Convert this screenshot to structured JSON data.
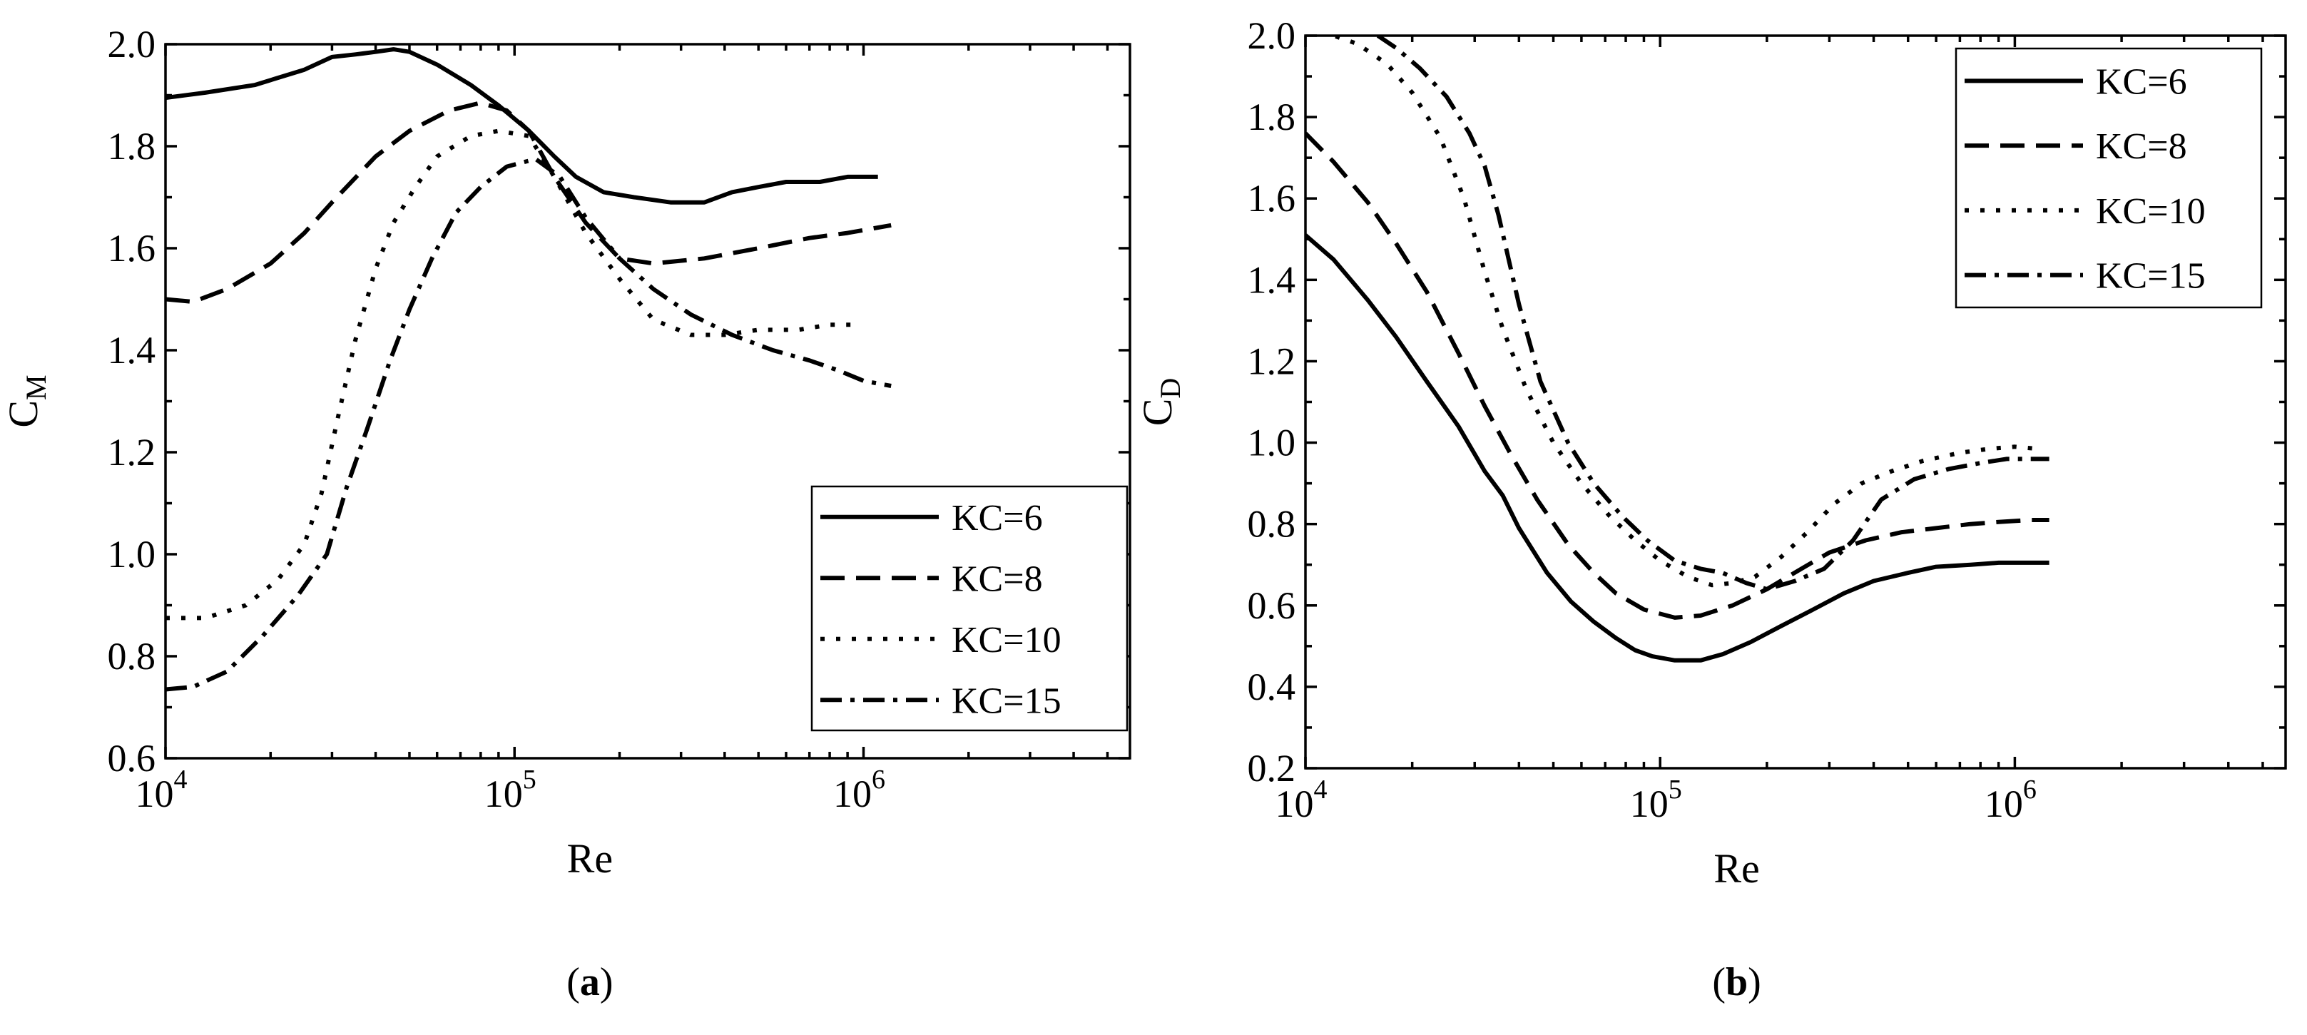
{
  "chart_data": [
    {
      "type": "line",
      "panel_label": "a",
      "title": "",
      "xlabel": "Re",
      "ylabel": "C",
      "ylabel_sub": "M",
      "xscale": "log",
      "xlim": [
        10000,
        5800000
      ],
      "ylim": [
        0.6,
        2.0
      ],
      "x_ticks": [
        {
          "base": "10",
          "exp": "4"
        },
        {
          "base": "10",
          "exp": "5"
        },
        {
          "base": "10",
          "exp": "6"
        }
      ],
      "y_tick_labels": [
        "0.6",
        "0.8",
        "1.0",
        "1.2",
        "1.4",
        "1.6",
        "1.8",
        "2.0"
      ],
      "legend_position": "bottom-right",
      "series": [
        {
          "name": "KC=6",
          "dash": "solid",
          "x": [
            10000,
            13000,
            18000,
            25000,
            30000,
            35000,
            40000,
            45000,
            50000,
            60000,
            75000,
            90000,
            110000,
            130000,
            150000,
            180000,
            220000,
            280000,
            350000,
            420000,
            500000,
            600000,
            750000,
            900000,
            1100000
          ],
          "y": [
            1.895,
            1.905,
            1.92,
            1.95,
            1.975,
            1.98,
            1.985,
            1.99,
            1.985,
            1.96,
            1.92,
            1.88,
            1.83,
            1.78,
            1.74,
            1.71,
            1.7,
            1.69,
            1.69,
            1.71,
            1.72,
            1.73,
            1.73,
            1.74,
            1.74
          ]
        },
        {
          "name": "KC=8",
          "dash": "dash",
          "x": [
            10000,
            12000,
            15000,
            20000,
            25000,
            30000,
            40000,
            50000,
            65000,
            80000,
            95000,
            110000,
            130000,
            160000,
            200000,
            250000,
            350000,
            500000,
            700000,
            900000,
            1200000
          ],
          "y": [
            1.5,
            1.495,
            1.52,
            1.57,
            1.63,
            1.69,
            1.78,
            1.83,
            1.87,
            1.885,
            1.87,
            1.83,
            1.74,
            1.65,
            1.58,
            1.57,
            1.58,
            1.6,
            1.62,
            1.63,
            1.645
          ]
        },
        {
          "name": "KC=10",
          "dash": "dot",
          "x": [
            10000,
            13000,
            17000,
            21000,
            25000,
            28000,
            31000,
            35000,
            40000,
            45000,
            52000,
            60000,
            75000,
            90000,
            110000,
            130000,
            160000,
            200000,
            250000,
            320000,
            400000,
            500000,
            650000,
            800000,
            950000
          ],
          "y": [
            0.875,
            0.875,
            0.9,
            0.95,
            1.02,
            1.12,
            1.26,
            1.42,
            1.56,
            1.65,
            1.72,
            1.78,
            1.82,
            1.83,
            1.82,
            1.74,
            1.63,
            1.54,
            1.46,
            1.43,
            1.43,
            1.44,
            1.44,
            1.45,
            1.45
          ]
        },
        {
          "name": "KC=15",
          "dash": "dashdot",
          "x": [
            10000,
            12000,
            15000,
            19000,
            24000,
            29000,
            33000,
            38000,
            44000,
            50000,
            58000,
            68000,
            80000,
            95000,
            115000,
            135000,
            160000,
            200000,
            250000,
            320000,
            420000,
            550000,
            700000,
            850000,
            1000000,
            1200000
          ],
          "y": [
            0.735,
            0.74,
            0.77,
            0.84,
            0.92,
            1.0,
            1.13,
            1.25,
            1.38,
            1.48,
            1.58,
            1.67,
            1.72,
            1.76,
            1.775,
            1.74,
            1.66,
            1.58,
            1.52,
            1.47,
            1.43,
            1.4,
            1.38,
            1.36,
            1.34,
            1.33
          ]
        }
      ]
    },
    {
      "type": "line",
      "panel_label": "b",
      "title": "",
      "xlabel": "Re",
      "ylabel": "C",
      "ylabel_sub": "D",
      "xscale": "log",
      "xlim": [
        10000,
        5800000
      ],
      "ylim": [
        0.2,
        2.0
      ],
      "x_ticks": [
        {
          "base": "10",
          "exp": "4"
        },
        {
          "base": "10",
          "exp": "5"
        },
        {
          "base": "10",
          "exp": "6"
        }
      ],
      "y_tick_labels": [
        "0.2",
        "0.4",
        "0.6",
        "0.8",
        "1.0",
        "1.2",
        "1.4",
        "1.6",
        "1.8",
        "2.0"
      ],
      "legend_position": "top-right",
      "series": [
        {
          "name": "KC=6",
          "dash": "solid",
          "x": [
            10000,
            12000,
            15000,
            18000,
            22000,
            27000,
            32000,
            36000,
            40000,
            48000,
            56000,
            65000,
            75000,
            85000,
            95000,
            110000,
            130000,
            150000,
            180000,
            220000,
            270000,
            330000,
            400000,
            500000,
            600000,
            750000,
            900000,
            1100000,
            1250000
          ],
          "y": [
            1.51,
            1.45,
            1.35,
            1.26,
            1.15,
            1.04,
            0.93,
            0.87,
            0.79,
            0.68,
            0.61,
            0.56,
            0.52,
            0.49,
            0.475,
            0.465,
            0.465,
            0.48,
            0.51,
            0.55,
            0.59,
            0.63,
            0.66,
            0.68,
            0.695,
            0.7,
            0.705,
            0.705,
            0.705
          ]
        },
        {
          "name": "KC=8",
          "dash": "dash",
          "x": [
            10000,
            12000,
            15000,
            18000,
            22000,
            27000,
            32000,
            38000,
            45000,
            55000,
            65000,
            75000,
            90000,
            110000,
            130000,
            160000,
            200000,
            250000,
            300000,
            380000,
            480000,
            600000,
            750000,
            900000,
            1100000,
            1250000
          ],
          "y": [
            1.76,
            1.69,
            1.59,
            1.49,
            1.37,
            1.22,
            1.09,
            0.97,
            0.86,
            0.75,
            0.68,
            0.63,
            0.59,
            0.57,
            0.575,
            0.6,
            0.64,
            0.69,
            0.73,
            0.76,
            0.78,
            0.79,
            0.8,
            0.805,
            0.81,
            0.81
          ]
        },
        {
          "name": "KC=10",
          "dash": "dot",
          "x": [
            10000,
            12000,
            14000,
            17000,
            20000,
            24000,
            28000,
            32000,
            36000,
            42000,
            50000,
            60000,
            72000,
            85000,
            100000,
            120000,
            140000,
            160000,
            185000,
            220000,
            260000,
            310000,
            370000,
            450000,
            550000,
            700000,
            850000,
            1000000,
            1150000
          ],
          "y": [
            2.02,
            2.0,
            1.98,
            1.93,
            1.86,
            1.75,
            1.6,
            1.42,
            1.28,
            1.13,
            1.0,
            0.9,
            0.82,
            0.76,
            0.71,
            0.67,
            0.65,
            0.655,
            0.67,
            0.72,
            0.78,
            0.85,
            0.9,
            0.93,
            0.955,
            0.975,
            0.985,
            0.99,
            0.985
          ]
        },
        {
          "name": "KC=15",
          "dash": "dashdot",
          "x": [
            16000,
            18000,
            21000,
            25000,
            29000,
            32000,
            35000,
            40000,
            46000,
            55000,
            65000,
            78000,
            92000,
            110000,
            130000,
            150000,
            175000,
            200000,
            240000,
            290000,
            350000,
            420000,
            520000,
            650000,
            800000,
            950000,
            1100000,
            1250000
          ],
          "y": [
            2.0,
            1.97,
            1.92,
            1.85,
            1.76,
            1.68,
            1.56,
            1.34,
            1.15,
            1.0,
            0.9,
            0.82,
            0.76,
            0.71,
            0.69,
            0.68,
            0.655,
            0.64,
            0.66,
            0.69,
            0.76,
            0.86,
            0.91,
            0.935,
            0.95,
            0.96,
            0.96,
            0.96
          ]
        }
      ]
    }
  ]
}
